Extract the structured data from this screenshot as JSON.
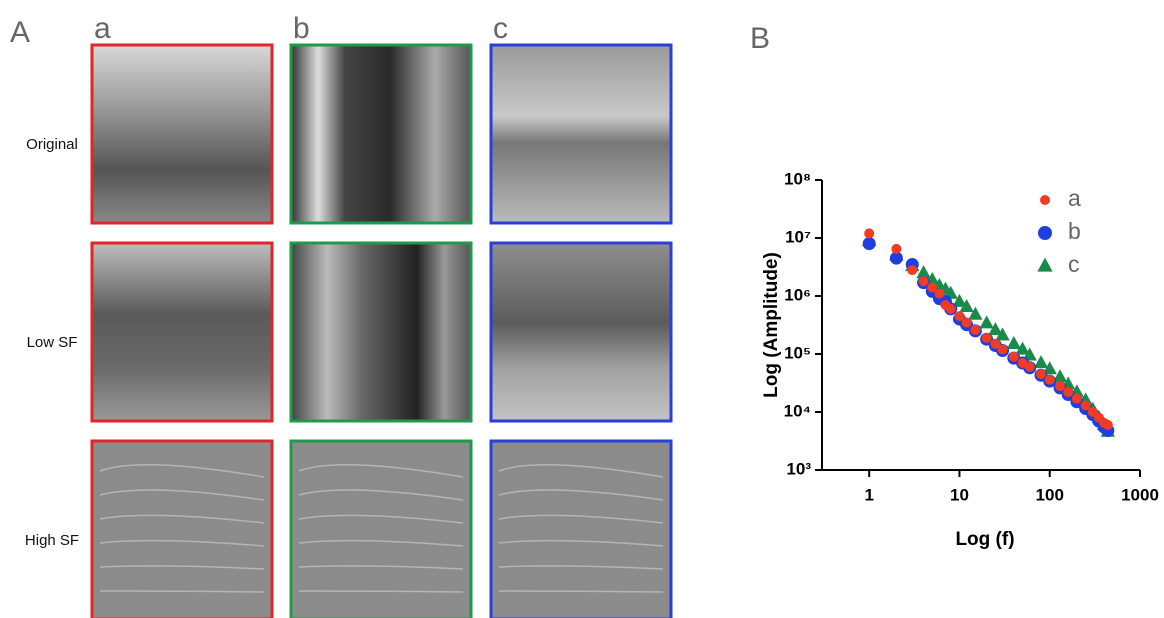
{
  "panel_a": {
    "label": "A",
    "columns": [
      "a",
      "b",
      "c"
    ],
    "rows": [
      "Original",
      "Low SF",
      "High SF"
    ]
  },
  "panel_b": {
    "label": "B"
  },
  "chart_data": {
    "type": "scatter",
    "xlabel": "Log (f)",
    "ylabel": "Log (Amplitude)",
    "xscale": "log",
    "yscale": "log",
    "xlim": [
      0.3,
      1000
    ],
    "ylim": [
      1000,
      100000000
    ],
    "xticks": [
      1,
      10,
      100,
      1000
    ],
    "yticks": [
      {
        "value": 1000,
        "label": "10³"
      },
      {
        "value": 10000,
        "label": "10⁴"
      },
      {
        "value": 100000,
        "label": "10⁵"
      },
      {
        "value": 1000000,
        "label": "10⁶"
      },
      {
        "value": 10000000,
        "label": "10⁷"
      },
      {
        "value": 100000000,
        "label": "10⁸"
      }
    ],
    "grid": false,
    "legend": "upper right",
    "x": [
      1,
      2,
      3,
      4,
      5,
      6,
      7,
      8,
      10,
      12,
      15,
      20,
      25,
      30,
      40,
      50,
      60,
      80,
      100,
      130,
      160,
      200,
      250,
      300,
      350,
      400,
      440
    ],
    "series": [
      {
        "name": "a",
        "color": "#f03c24",
        "marker": "circle",
        "values": [
          12000000,
          6500000,
          2800000,
          1800000,
          1400000,
          1100000,
          700000,
          600000,
          450000,
          350000,
          260000,
          190000,
          150000,
          120000,
          90000,
          70000,
          60000,
          45000,
          36000,
          28000,
          22000,
          17000,
          13000,
          10000,
          8000,
          6500,
          6000
        ]
      },
      {
        "name": "b",
        "color": "#1f3ee0",
        "marker": "circle",
        "values": [
          8000000,
          4500000,
          3500000,
          1700000,
          1200000,
          900000,
          800000,
          600000,
          400000,
          320000,
          250000,
          180000,
          140000,
          115000,
          85000,
          70000,
          58000,
          43000,
          34000,
          26000,
          20000,
          15000,
          11500,
          9000,
          7000,
          5500,
          4800
        ]
      },
      {
        "name": "c",
        "color": "#1a8a4a",
        "marker": "triangle",
        "values": [
          9000000,
          5000000,
          3300000,
          2500000,
          1900000,
          1500000,
          1300000,
          1100000,
          800000,
          650000,
          480000,
          340000,
          260000,
          210000,
          150000,
          120000,
          95000,
          70000,
          55000,
          40000,
          30000,
          22000,
          16000,
          11000,
          8000,
          6000,
          4600
        ]
      }
    ]
  }
}
